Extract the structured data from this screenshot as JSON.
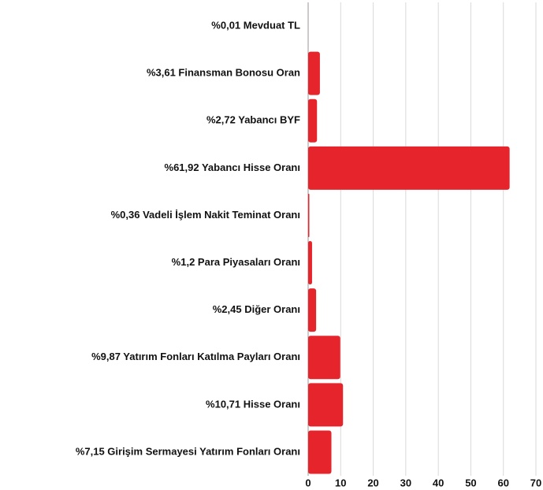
{
  "chart_data": {
    "type": "hbar",
    "categories": [
      "%0,01 Mevduat TL",
      "%3,61 Finansman Bonosu Oran",
      "%2,72 Yabancı BYF",
      "%61,92 Yabancı Hisse Oranı",
      "%0,36 Vadeli İşlem Nakit Teminat Oranı",
      "%1,2 Para Piyasaları Oranı",
      "%2,45 Diğer Oranı",
      "%9,87 Yatırım Fonları Katılma Payları Oranı",
      "%10,71 Hisse Oranı",
      "%7,15 Girişim Sermayesi Yatırım Fonları Oranı"
    ],
    "values": [
      0.01,
      3.61,
      2.72,
      61.92,
      0.36,
      1.2,
      2.45,
      9.87,
      10.71,
      7.15
    ],
    "color": "#e5242b",
    "xlim": [
      0,
      70
    ],
    "xticks": [
      0,
      10,
      20,
      30,
      40,
      50,
      60,
      70
    ],
    "grid": true
  }
}
